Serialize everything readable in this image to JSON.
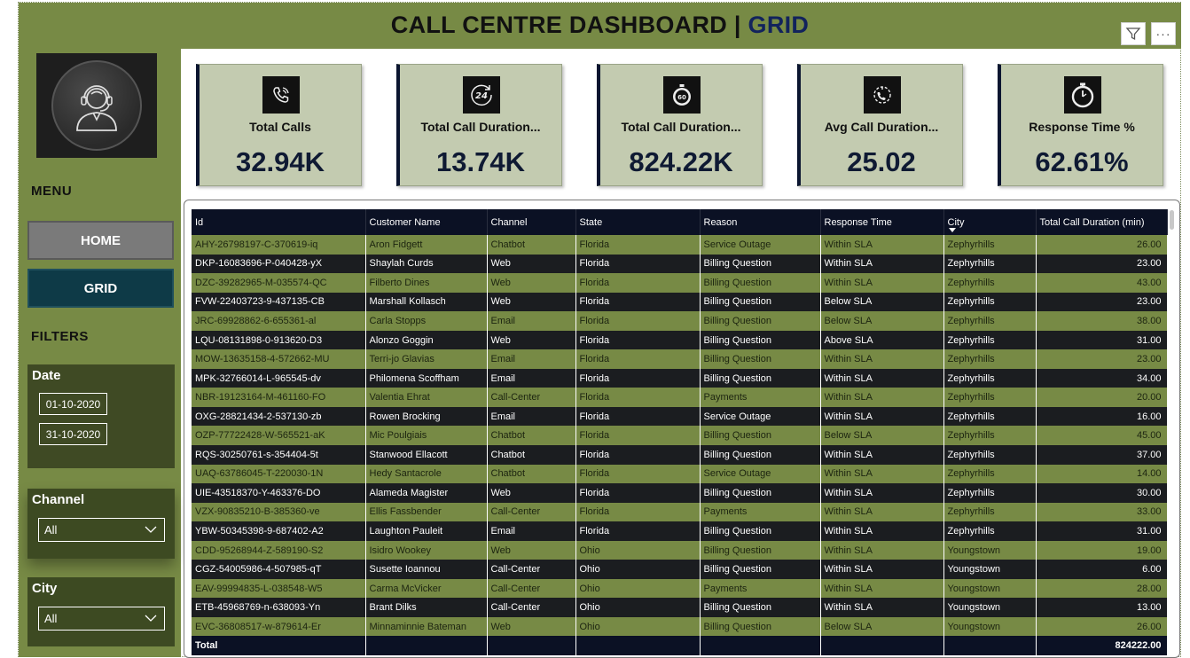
{
  "header": {
    "title_main": "CALL CENTRE DASHBOARD | ",
    "title_accent": "GRID",
    "more_label": "···",
    "icons": {
      "filter": "filter-icon",
      "more": "more-options-icon"
    }
  },
  "sidebar": {
    "logo_icon": "call-center-agent-icon",
    "menu_heading": "MENU",
    "home_label": "HOME",
    "grid_label": "GRID",
    "filters_heading": "FILTERS",
    "date": {
      "label": "Date",
      "start": "01-10-2020",
      "end": "31-10-2020"
    },
    "channel": {
      "label": "Channel",
      "selected": "All"
    },
    "city": {
      "label": "City",
      "selected": "All"
    }
  },
  "kpis": [
    {
      "label": "Total Calls",
      "value": "32.94K",
      "icon": "phone-ringing-icon"
    },
    {
      "label": "Total Call Duration...",
      "value": "13.74K",
      "icon": "24-hours-icon"
    },
    {
      "label": "Total Call Duration...",
      "value": "824.22K",
      "icon": "stopwatch-60-icon"
    },
    {
      "label": "Avg Call Duration...",
      "value": "25.02",
      "icon": "call-timer-icon"
    },
    {
      "label": "Response Time %",
      "value": "62.61%",
      "icon": "stopwatch-icon"
    }
  ],
  "table": {
    "columns": [
      "Id",
      "Customer Name",
      "Channel",
      "State",
      "Reason",
      "Response Time",
      "City",
      "Total Call Duration (min)"
    ],
    "rows": [
      [
        "AHY-26798197-C-370619-iq",
        "Aron Fidgett",
        "Chatbot",
        "Florida",
        "Service Outage",
        "Within SLA",
        "Zephyrhills",
        "26.00"
      ],
      [
        "DKP-16083696-P-040428-yX",
        "Shaylah Curds",
        "Web",
        "Florida",
        "Billing Question",
        "Within SLA",
        "Zephyrhills",
        "23.00"
      ],
      [
        "DZC-39282965-M-035574-QC",
        "Filberto Dines",
        "Web",
        "Florida",
        "Billing Question",
        "Within SLA",
        "Zephyrhills",
        "43.00"
      ],
      [
        "FVW-22403723-9-437135-CB",
        "Marshall Kollasch",
        "Web",
        "Florida",
        "Billing Question",
        "Below SLA",
        "Zephyrhills",
        "23.00"
      ],
      [
        "JRC-69928862-6-655361-al",
        "Carla Stopps",
        "Email",
        "Florida",
        "Billing Question",
        "Below SLA",
        "Zephyrhills",
        "38.00"
      ],
      [
        "LQU-08131898-0-913620-D3",
        "Alonzo Goggin",
        "Web",
        "Florida",
        "Billing Question",
        "Above SLA",
        "Zephyrhills",
        "31.00"
      ],
      [
        "MOW-13635158-4-572662-MU",
        "Terri-jo Glavias",
        "Email",
        "Florida",
        "Billing Question",
        "Within SLA",
        "Zephyrhills",
        "23.00"
      ],
      [
        "MPK-32766014-L-965545-dv",
        "Philomena Scoffham",
        "Email",
        "Florida",
        "Billing Question",
        "Within SLA",
        "Zephyrhills",
        "34.00"
      ],
      [
        "NBR-19123164-M-461160-FO",
        "Valentia Ehrat",
        "Call-Center",
        "Florida",
        "Payments",
        "Within SLA",
        "Zephyrhills",
        "20.00"
      ],
      [
        "OXG-28821434-2-537130-zb",
        "Rowen Brocking",
        "Email",
        "Florida",
        "Service Outage",
        "Within SLA",
        "Zephyrhills",
        "16.00"
      ],
      [
        "OZP-77722428-W-565521-aK",
        "Mic Poulgiais",
        "Chatbot",
        "Florida",
        "Billing Question",
        "Below SLA",
        "Zephyrhills",
        "45.00"
      ],
      [
        "RQS-30250761-s-354404-5t",
        "Stanwood Ellacott",
        "Chatbot",
        "Florida",
        "Billing Question",
        "Within SLA",
        "Zephyrhills",
        "37.00"
      ],
      [
        "UAQ-63786045-T-220030-1N",
        "Hedy Santacrole",
        "Chatbot",
        "Florida",
        "Service Outage",
        "Within SLA",
        "Zephyrhills",
        "14.00"
      ],
      [
        "UIE-43518370-Y-463376-DO",
        "Alameda Magister",
        "Web",
        "Florida",
        "Billing Question",
        "Within SLA",
        "Zephyrhills",
        "30.00"
      ],
      [
        "VZX-90835210-B-385360-ve",
        "Ellis Fassbender",
        "Call-Center",
        "Florida",
        "Payments",
        "Within SLA",
        "Zephyrhills",
        "33.00"
      ],
      [
        "YBW-50345398-9-687402-A2",
        "Laughton Pauleit",
        "Email",
        "Florida",
        "Billing Question",
        "Within SLA",
        "Zephyrhills",
        "31.00"
      ],
      [
        "CDD-95268944-Z-589190-S2",
        "Isidro Wookey",
        "Web",
        "Ohio",
        "Billing Question",
        "Within SLA",
        "Youngstown",
        "19.00"
      ],
      [
        "CGZ-54005986-4-507985-qT",
        "Susette Ioannou",
        "Call-Center",
        "Ohio",
        "Billing Question",
        "Within SLA",
        "Youngstown",
        "6.00"
      ],
      [
        "EAV-99994835-L-038548-W5",
        "Carma McVicker",
        "Call-Center",
        "Ohio",
        "Payments",
        "Within SLA",
        "Youngstown",
        "28.00"
      ],
      [
        "ETB-45968769-n-638093-Yn",
        "Brant Dilks",
        "Call-Center",
        "Ohio",
        "Billing Question",
        "Within SLA",
        "Youngstown",
        "13.00"
      ],
      [
        "EVC-36808517-w-879614-Er",
        "Minnaminnie Bateman",
        "Web",
        "Ohio",
        "Billing Question",
        "Below SLA",
        "Youngstown",
        "26.00"
      ]
    ],
    "total_label": "Total",
    "total_value": "824222.00"
  }
}
